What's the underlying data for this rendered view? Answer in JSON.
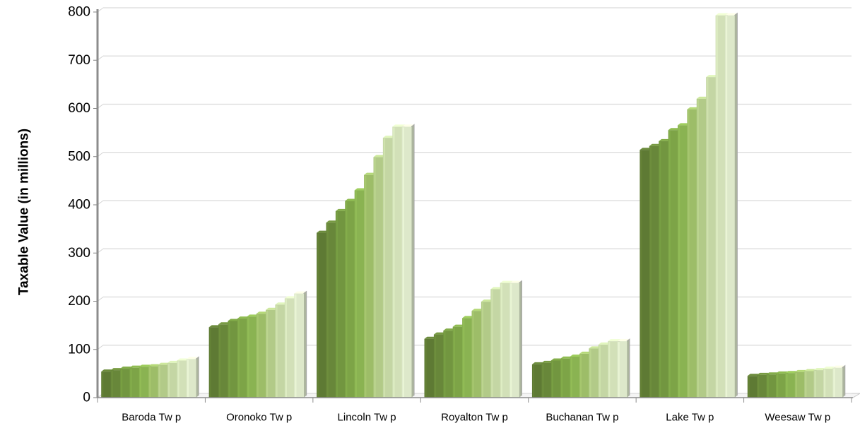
{
  "chart_data": {
    "type": "bar",
    "title": "",
    "xlabel": "",
    "ylabel": "Taxable Value (in millions)",
    "ylim": [
      0,
      800
    ],
    "yticks": [
      0,
      100,
      200,
      300,
      400,
      500,
      600,
      700,
      800
    ],
    "grid": true,
    "legend": "none",
    "style": "3d-clustered",
    "categories": [
      "Baroda Tw p",
      "Oronoko Tw p",
      "Lincoln Tw p",
      "Royalton Tw p",
      "Buchanan Tw p",
      "Lake Tw p",
      "Weesaw  Tw p"
    ],
    "series_colors": [
      "#5e7a34",
      "#68873a",
      "#729640",
      "#7da447",
      "#8ab352",
      "#9dbd68",
      "#b2ca88",
      "#c4d6a4",
      "#d2e0b8",
      "#dde8ca"
    ],
    "values": [
      [
        54,
        57,
        60,
        62,
        64,
        65,
        68,
        72,
        77,
        80
      ],
      [
        146,
        152,
        159,
        164,
        168,
        174,
        182,
        193,
        206,
        216
      ],
      [
        342,
        363,
        387,
        408,
        430,
        462,
        499,
        539,
        562,
        562
      ],
      [
        122,
        131,
        139,
        147,
        165,
        180,
        199,
        225,
        238,
        238
      ],
      [
        69,
        72,
        77,
        81,
        85,
        91,
        102,
        110,
        117,
        117
      ],
      [
        514,
        522,
        532,
        555,
        565,
        598,
        620,
        665,
        793,
        793
      ],
      [
        45,
        47,
        48,
        50,
        51,
        53,
        55,
        57,
        60,
        62
      ]
    ]
  }
}
